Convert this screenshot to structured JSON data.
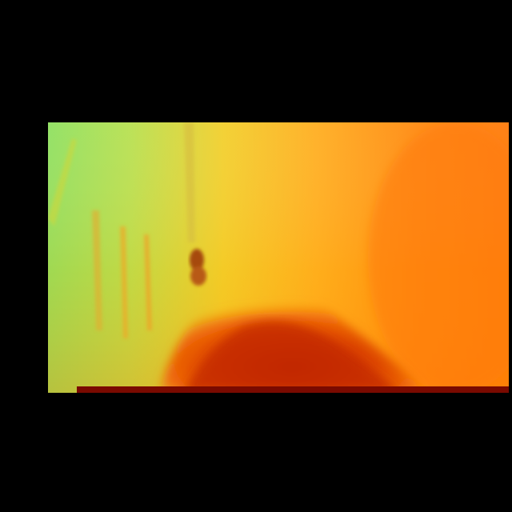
{
  "image": {
    "description_colors": {
      "background": "#000000",
      "cool_region": "#8fe060",
      "warm_region": "#ffa21c",
      "hot_region": "#ff7a0a",
      "near_region": "#cc2a00",
      "bottom_band": "#7a0a00"
    }
  }
}
